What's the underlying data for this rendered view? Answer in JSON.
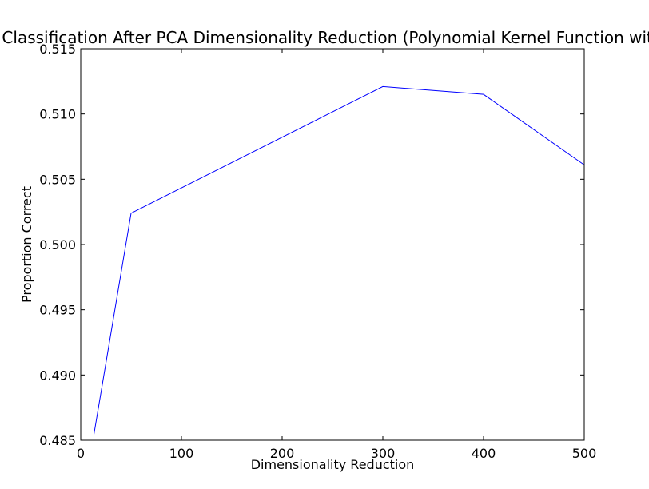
{
  "chart_data": {
    "type": "line",
    "title": "Classification After PCA Dimensionality Reduction (Polynomial Kernel Function with",
    "xlabel": "Dimensionality Reduction",
    "ylabel": "Proportion Correct",
    "xlim": [
      0,
      500
    ],
    "ylim": [
      0.485,
      0.515
    ],
    "xticks": [
      0,
      100,
      200,
      300,
      400,
      500
    ],
    "xtick_labels": [
      "0",
      "100",
      "200",
      "300",
      "400",
      "500"
    ],
    "yticks": [
      0.485,
      0.49,
      0.495,
      0.5,
      0.505,
      0.51,
      0.515
    ],
    "ytick_labels": [
      "0.485",
      "0.490",
      "0.495",
      "0.500",
      "0.505",
      "0.510",
      "0.515"
    ],
    "grid": false,
    "series": [
      {
        "color": "#0000ff",
        "x": [
          13,
          50,
          300,
          400,
          500
        ],
        "y": [
          0.4854,
          0.5024,
          0.5121,
          0.5115,
          0.5061
        ]
      }
    ]
  }
}
